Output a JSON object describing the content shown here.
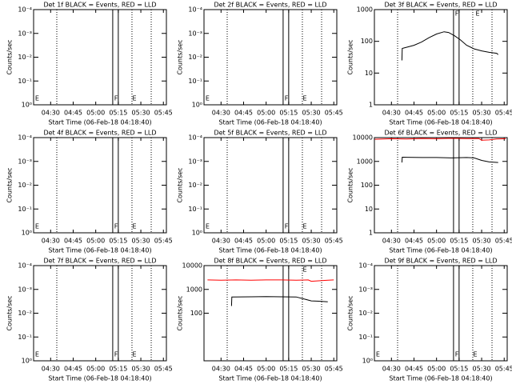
{
  "chart_data": [
    {
      "type": "line",
      "title": "Det 1f BLACK = Events, RED = LLD",
      "x_label": "Start Time (06-Feb-18 04:18:40)",
      "y_label": "Counts/sec",
      "log_y": true,
      "xlim": [
        258.67,
        347
      ],
      "xticks": [
        {
          "value": 270,
          "label": "04:30"
        },
        {
          "value": 285,
          "label": "04:45"
        },
        {
          "value": 300,
          "label": "05:00"
        },
        {
          "value": 315,
          "label": "05:15"
        },
        {
          "value": 330,
          "label": "05:30"
        },
        {
          "value": 345,
          "label": "05:45"
        }
      ],
      "ylim": [
        1,
        0.0001
      ],
      "yticks": [
        {
          "value": 1,
          "label": "10⁰"
        },
        {
          "value": 0.1,
          "label": "10⁻¹"
        },
        {
          "value": 0.01,
          "label": "10⁻²"
        },
        {
          "value": 0.001,
          "label": "10⁻³"
        },
        {
          "value": 0.0001,
          "label": "10⁻⁴"
        }
      ],
      "series": [],
      "vlines": [
        {
          "x": 274.1,
          "style": "dotted"
        },
        {
          "x": 311.3,
          "style": "solid"
        },
        {
          "x": 315,
          "style": "solid"
        },
        {
          "x": 324.1,
          "style": "dotted"
        },
        {
          "x": 336.9,
          "style": "dotted"
        }
      ],
      "annotations": [
        {
          "text": "E",
          "x": 261,
          "pos": "bottom"
        },
        {
          "text": "F",
          "x": 313.5,
          "pos": "bottom"
        },
        {
          "text": "E",
          "x": 325.7,
          "pos": "bottom"
        }
      ]
    },
    {
      "type": "line",
      "title": "Det 2f BLACK = Events, RED = LLD",
      "x_label": "Start Time (06-Feb-18 04:18:40)",
      "y_label": "Counts/sec",
      "log_y": true,
      "xlim": [
        258.67,
        347
      ],
      "xticks": [
        {
          "value": 270,
          "label": "04:30"
        },
        {
          "value": 285,
          "label": "04:45"
        },
        {
          "value": 300,
          "label": "05:00"
        },
        {
          "value": 315,
          "label": "05:15"
        },
        {
          "value": 330,
          "label": "05:30"
        },
        {
          "value": 345,
          "label": "05:45"
        }
      ],
      "ylim": [
        1,
        0.0001
      ],
      "yticks": [
        {
          "value": 1,
          "label": "10⁰"
        },
        {
          "value": 0.1,
          "label": "10⁻¹"
        },
        {
          "value": 0.01,
          "label": "10⁻²"
        },
        {
          "value": 0.001,
          "label": "10⁻³"
        },
        {
          "value": 0.0001,
          "label": "10⁻⁴"
        }
      ],
      "series": [],
      "vlines": [
        {
          "x": 274.1,
          "style": "dotted"
        },
        {
          "x": 311.3,
          "style": "solid"
        },
        {
          "x": 315,
          "style": "solid"
        },
        {
          "x": 324.1,
          "style": "dotted"
        },
        {
          "x": 336.9,
          "style": "dotted"
        }
      ],
      "annotations": [
        {
          "text": "E",
          "x": 261,
          "pos": "bottom"
        },
        {
          "text": "F",
          "x": 313.5,
          "pos": "bottom"
        },
        {
          "text": "E",
          "x": 325.7,
          "pos": "bottom"
        }
      ]
    },
    {
      "type": "line",
      "title": "Det 3f BLACK = Events, RED = LLD",
      "x_label": "Start Time (06-Feb-18 04:18:40)",
      "y_label": "Counts/sec",
      "log_y": true,
      "xlim": [
        258.67,
        347
      ],
      "xticks": [
        {
          "value": 270,
          "label": "04:30"
        },
        {
          "value": 285,
          "label": "04:45"
        },
        {
          "value": 300,
          "label": "05:00"
        },
        {
          "value": 315,
          "label": "05:15"
        },
        {
          "value": 330,
          "label": "05:30"
        },
        {
          "value": 345,
          "label": "05:45"
        }
      ],
      "ylim": [
        1,
        1000
      ],
      "yticks": [
        1,
        10,
        100,
        1000
      ],
      "series": [
        {
          "color": "#000000",
          "x": [
            277,
            277.2,
            280,
            285,
            290,
            295,
            300,
            305,
            308,
            312,
            316,
            320,
            325,
            330,
            335,
            340,
            341
          ],
          "values": [
            25,
            60,
            65,
            75,
            95,
            130,
            170,
            200,
            190,
            150,
            110,
            75,
            58,
            50,
            45,
            42,
            38
          ]
        }
      ],
      "vlines": [
        {
          "x": 274.1,
          "style": "dotted"
        },
        {
          "x": 311.3,
          "style": "solid"
        },
        {
          "x": 315,
          "style": "solid"
        },
        {
          "x": 324.1,
          "style": "dotted"
        },
        {
          "x": 336.9,
          "style": "dotted"
        }
      ],
      "annotations": [
        {
          "text": "F",
          "x": 313.5,
          "pos": "top"
        },
        {
          "text": "E",
          "x": 327.3,
          "pos": "top"
        }
      ]
    },
    {
      "type": "line",
      "title": "Det 4f BLACK = Events, RED = LLD",
      "x_label": "Start Time (06-Feb-18 04:18:40)",
      "y_label": "Counts/sec",
      "log_y": true,
      "xlim": [
        258.67,
        347
      ],
      "xticks": [
        {
          "value": 270,
          "label": "04:30"
        },
        {
          "value": 285,
          "label": "04:45"
        },
        {
          "value": 300,
          "label": "05:00"
        },
        {
          "value": 315,
          "label": "05:15"
        },
        {
          "value": 330,
          "label": "05:30"
        },
        {
          "value": 345,
          "label": "05:45"
        }
      ],
      "ylim": [
        1,
        0.0001
      ],
      "yticks": [
        {
          "value": 1,
          "label": "10⁰"
        },
        {
          "value": 0.1,
          "label": "10⁻¹"
        },
        {
          "value": 0.01,
          "label": "10⁻²"
        },
        {
          "value": 0.001,
          "label": "10⁻³"
        },
        {
          "value": 0.0001,
          "label": "10⁻⁴"
        }
      ],
      "series": [],
      "vlines": [
        {
          "x": 274.1,
          "style": "dotted"
        },
        {
          "x": 311.3,
          "style": "solid"
        },
        {
          "x": 315,
          "style": "solid"
        },
        {
          "x": 324.1,
          "style": "dotted"
        },
        {
          "x": 336.9,
          "style": "dotted"
        }
      ],
      "annotations": [
        {
          "text": "E",
          "x": 261,
          "pos": "bottom"
        },
        {
          "text": "F",
          "x": 313.5,
          "pos": "bottom"
        },
        {
          "text": "E",
          "x": 325.7,
          "pos": "bottom"
        }
      ]
    },
    {
      "type": "line",
      "title": "Det 5f BLACK = Events, RED = LLD",
      "x_label": "Start Time (06-Feb-18 04:18:40)",
      "y_label": "Counts/sec",
      "log_y": true,
      "xlim": [
        258.67,
        347
      ],
      "xticks": [
        {
          "value": 270,
          "label": "04:30"
        },
        {
          "value": 285,
          "label": "04:45"
        },
        {
          "value": 300,
          "label": "05:00"
        },
        {
          "value": 315,
          "label": "05:15"
        },
        {
          "value": 330,
          "label": "05:30"
        },
        {
          "value": 345,
          "label": "05:45"
        }
      ],
      "ylim": [
        1,
        0.0001
      ],
      "yticks": [
        {
          "value": 1,
          "label": "10⁰"
        },
        {
          "value": 0.1,
          "label": "10⁻¹"
        },
        {
          "value": 0.01,
          "label": "10⁻²"
        },
        {
          "value": 0.001,
          "label": "10⁻³"
        },
        {
          "value": 0.0001,
          "label": "10⁻⁴"
        }
      ],
      "series": [],
      "vlines": [
        {
          "x": 274.1,
          "style": "dotted"
        },
        {
          "x": 311.3,
          "style": "solid"
        },
        {
          "x": 315,
          "style": "solid"
        },
        {
          "x": 324.1,
          "style": "dotted"
        },
        {
          "x": 336.9,
          "style": "dotted"
        }
      ],
      "annotations": [
        {
          "text": "E",
          "x": 261,
          "pos": "bottom"
        },
        {
          "text": "F",
          "x": 313.5,
          "pos": "bottom"
        },
        {
          "text": "E",
          "x": 325.7,
          "pos": "bottom"
        }
      ]
    },
    {
      "type": "line",
      "title": "Det 6f BLACK = Events, RED = LLD",
      "x_label": "Start Time (06-Feb-18 04:18:40)",
      "y_label": "Counts/sec",
      "log_y": true,
      "xlim": [
        258.67,
        347
      ],
      "xticks": [
        {
          "value": 270,
          "label": "04:30"
        },
        {
          "value": 285,
          "label": "04:45"
        },
        {
          "value": 300,
          "label": "05:00"
        },
        {
          "value": 315,
          "label": "05:15"
        },
        {
          "value": 330,
          "label": "05:30"
        },
        {
          "value": 345,
          "label": "05:45"
        }
      ],
      "ylim": [
        1,
        10000
      ],
      "yticks": [
        1,
        10,
        100,
        1000,
        10000
      ],
      "series": [
        {
          "color": "#ff0000",
          "x": [
            259,
            270,
            280,
            290,
            300,
            310,
            320,
            328,
            330,
            335,
            340,
            346
          ],
          "values": [
            8500,
            9000,
            8800,
            9200,
            9000,
            9300,
            9100,
            9200,
            7800,
            8000,
            8800,
            9000
          ]
        },
        {
          "color": "#000000",
          "x": [
            277,
            277.2,
            290,
            300,
            310,
            320,
            325,
            330,
            335,
            341
          ],
          "values": [
            900,
            1500,
            1450,
            1450,
            1400,
            1450,
            1400,
            1100,
            950,
            900
          ]
        }
      ],
      "vlines": [
        {
          "x": 274.1,
          "style": "dotted"
        },
        {
          "x": 311.3,
          "style": "solid"
        },
        {
          "x": 315,
          "style": "solid"
        },
        {
          "x": 324.1,
          "style": "dotted"
        },
        {
          "x": 336.9,
          "style": "dotted"
        }
      ],
      "annotations": []
    },
    {
      "type": "line",
      "title": "Det 7f BLACK = Events, RED = LLD",
      "x_label": "Start Time (06-Feb-18 04:18:40)",
      "y_label": "Counts/sec",
      "log_y": true,
      "xlim": [
        258.67,
        347
      ],
      "xticks": [
        {
          "value": 270,
          "label": "04:30"
        },
        {
          "value": 285,
          "label": "04:45"
        },
        {
          "value": 300,
          "label": "05:00"
        },
        {
          "value": 315,
          "label": "05:15"
        },
        {
          "value": 330,
          "label": "05:30"
        },
        {
          "value": 345,
          "label": "05:45"
        }
      ],
      "ylim": [
        1,
        0.0001
      ],
      "yticks": [
        {
          "value": 1,
          "label": "10⁰"
        },
        {
          "value": 0.1,
          "label": "10⁻¹"
        },
        {
          "value": 0.01,
          "label": "10⁻²"
        },
        {
          "value": 0.001,
          "label": "10⁻³"
        },
        {
          "value": 0.0001,
          "label": "10⁻⁴"
        }
      ],
      "series": [],
      "vlines": [
        {
          "x": 274.1,
          "style": "dotted"
        },
        {
          "x": 311.3,
          "style": "solid"
        },
        {
          "x": 315,
          "style": "solid"
        },
        {
          "x": 324.1,
          "style": "dotted"
        },
        {
          "x": 336.9,
          "style": "dotted"
        }
      ],
      "annotations": [
        {
          "text": "E",
          "x": 261,
          "pos": "bottom"
        },
        {
          "text": "F",
          "x": 313.5,
          "pos": "bottom"
        },
        {
          "text": "E",
          "x": 325.7,
          "pos": "bottom"
        }
      ]
    },
    {
      "type": "line",
      "title": "Det 8f BLACK = Events, RED = LLD",
      "x_label": "Start Time (06-Feb-18 04:18:40)",
      "y_label": "Counts/sec",
      "log_y": true,
      "xlim": [
        258.67,
        347
      ],
      "xticks": [
        {
          "value": 270,
          "label": "04:30"
        },
        {
          "value": 285,
          "label": "04:45"
        },
        {
          "value": 300,
          "label": "05:00"
        },
        {
          "value": 315,
          "label": "05:15"
        },
        {
          "value": 330,
          "label": "05:30"
        },
        {
          "value": 345,
          "label": "05:45"
        }
      ],
      "ylim": [
        1,
        10000
      ],
      "yticks": [
        100,
        1000,
        10000
      ],
      "series": [
        {
          "color": "#ff0000",
          "x": [
            261,
            270,
            280,
            290,
            300,
            310,
            320,
            328,
            330,
            335,
            340,
            345
          ],
          "values": [
            2500,
            2450,
            2500,
            2450,
            2500,
            2500,
            2450,
            2500,
            2200,
            2300,
            2400,
            2500
          ]
        },
        {
          "color": "#000000",
          "x": [
            277,
            277.2,
            290,
            300,
            310,
            320,
            325,
            330,
            335,
            341
          ],
          "values": [
            200,
            480,
            490,
            500,
            490,
            480,
            400,
            330,
            320,
            300
          ]
        }
      ],
      "vlines": [
        {
          "x": 274.1,
          "style": "dotted"
        },
        {
          "x": 311.3,
          "style": "solid"
        },
        {
          "x": 315,
          "style": "solid"
        },
        {
          "x": 324.1,
          "style": "dotted"
        },
        {
          "x": 336.9,
          "style": "dotted"
        }
      ],
      "annotations": [
        {
          "text": "E",
          "x": 325.7,
          "pos": "top"
        }
      ]
    },
    {
      "type": "line",
      "title": "Det 9f BLACK = Events, RED = LLD",
      "x_label": "Start Time (06-Feb-18 04:18:40)",
      "y_label": "Counts/sec",
      "log_y": true,
      "xlim": [
        258.67,
        347
      ],
      "xticks": [
        {
          "value": 270,
          "label": "04:30"
        },
        {
          "value": 285,
          "label": "04:45"
        },
        {
          "value": 300,
          "label": "05:00"
        },
        {
          "value": 315,
          "label": "05:15"
        },
        {
          "value": 330,
          "label": "05:30"
        },
        {
          "value": 345,
          "label": "05:45"
        }
      ],
      "ylim": [
        1,
        0.0001
      ],
      "yticks": [
        {
          "value": 1,
          "label": "10⁰"
        },
        {
          "value": 0.1,
          "label": "10⁻¹"
        },
        {
          "value": 0.01,
          "label": "10⁻²"
        },
        {
          "value": 0.001,
          "label": "10⁻³"
        },
        {
          "value": 0.0001,
          "label": "10⁻⁴"
        }
      ],
      "series": [],
      "vlines": [
        {
          "x": 274.1,
          "style": "dotted"
        },
        {
          "x": 311.3,
          "style": "solid"
        },
        {
          "x": 315,
          "style": "solid"
        },
        {
          "x": 324.1,
          "style": "dotted"
        },
        {
          "x": 336.9,
          "style": "dotted"
        }
      ],
      "annotations": [
        {
          "text": "E",
          "x": 261,
          "pos": "bottom"
        },
        {
          "text": "F",
          "x": 313.5,
          "pos": "bottom"
        },
        {
          "text": "E",
          "x": 325.7,
          "pos": "bottom"
        }
      ]
    }
  ]
}
